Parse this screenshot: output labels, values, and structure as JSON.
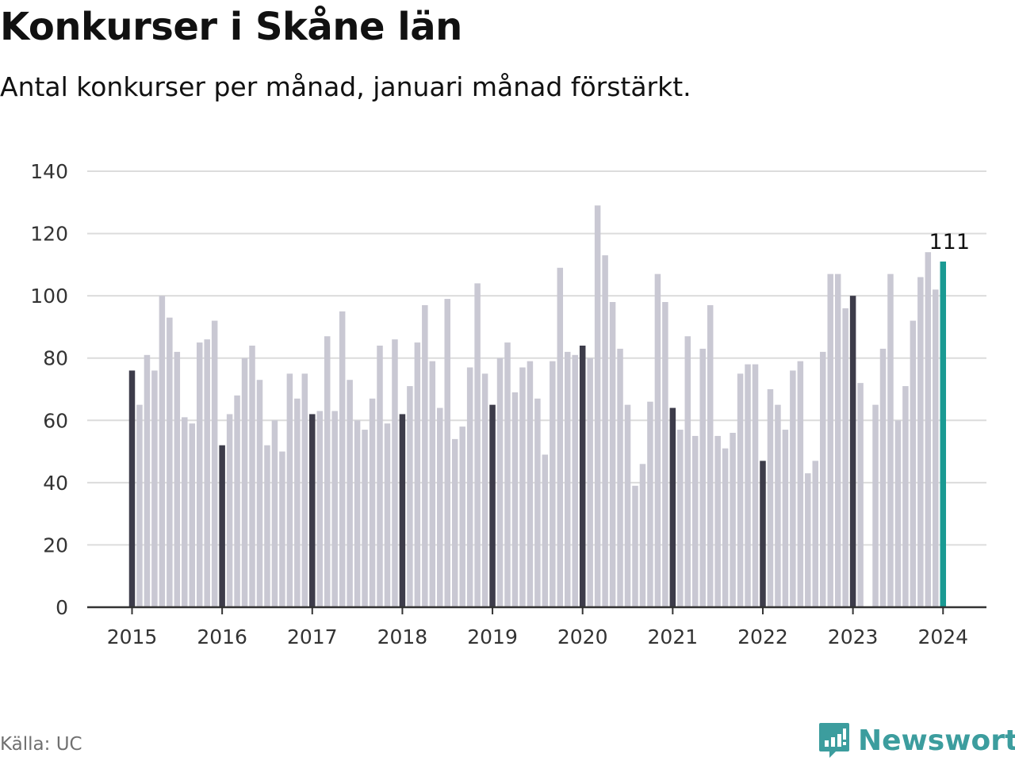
{
  "header": {
    "title": "Konkurser i Skåne län",
    "subtitle": "Antal konkurser per månad, januari månad förstärkt."
  },
  "footer": {
    "source": "Källa: UC",
    "brand": "Newsworthy",
    "brand_icon": "newsworthy-logo-icon"
  },
  "colors": {
    "bar": "#c9c8d3",
    "january_bar": "#3d3c4a",
    "latest_bar": "#1a9a93",
    "grid": "#dcdcdc",
    "axis": "#333333",
    "brand": "#3c9d9e"
  },
  "chart_data": {
    "type": "bar",
    "title": "Konkurser i Skåne län",
    "subtitle": "Antal konkurser per månad, januari månad förstärkt.",
    "xlabel": "",
    "ylabel": "",
    "ylim": [
      0,
      140
    ],
    "yticks": [
      0,
      20,
      40,
      60,
      80,
      100,
      120,
      140
    ],
    "grid": true,
    "highlight": "januari",
    "series": [
      {
        "year": "2015",
        "values": [
          76,
          65,
          81,
          76,
          100,
          93,
          82,
          61,
          59,
          85,
          86,
          92
        ]
      },
      {
        "year": "2016",
        "values": [
          52,
          62,
          68,
          80,
          84,
          73,
          52,
          60,
          50,
          75,
          67,
          75
        ]
      },
      {
        "year": "2017",
        "values": [
          62,
          63,
          87,
          63,
          95,
          73,
          60,
          57,
          67,
          84,
          59,
          86
        ]
      },
      {
        "year": "2018",
        "values": [
          62,
          71,
          85,
          97,
          79,
          64,
          99,
          54,
          58,
          77,
          104,
          75
        ]
      },
      {
        "year": "2019",
        "values": [
          65,
          80,
          85,
          69,
          77,
          79,
          67,
          49,
          79,
          109,
          82,
          81
        ]
      },
      {
        "year": "2020",
        "values": [
          84,
          80,
          129,
          113,
          98,
          83,
          65,
          39,
          46,
          66,
          107,
          98
        ]
      },
      {
        "year": "2021",
        "values": [
          64,
          57,
          87,
          55,
          83,
          97,
          55,
          51,
          56,
          75,
          78,
          78
        ]
      },
      {
        "year": "2022",
        "values": [
          47,
          70,
          65,
          57,
          76,
          79,
          43,
          47,
          82,
          107,
          107,
          96
        ]
      },
      {
        "year": "2023",
        "values": [
          100,
          72,
          0,
          65,
          83,
          107,
          60,
          71,
          92,
          106,
          114,
          102
        ]
      },
      {
        "year": "2024",
        "values": [
          111
        ]
      }
    ],
    "annotations": [
      {
        "label": "111",
        "target": "2024 januari"
      }
    ]
  }
}
